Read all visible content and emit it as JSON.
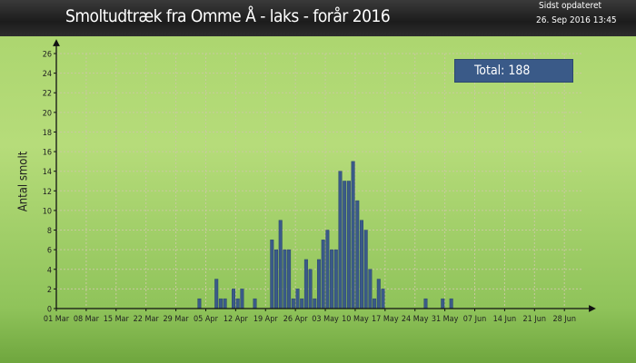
{
  "header": {
    "title": "Smoltudtræk fra Omme Å - laks - forår 2016",
    "updated_label": "Sidst opdateret",
    "updated_value": "26. Sep 2016  13:45"
  },
  "total_label": "Total: 188",
  "colors": {
    "bar": "#3a5a88",
    "grid": "#c9c9a0",
    "axis": "#111111"
  },
  "chart_data": {
    "type": "bar",
    "title": "Smoltudtræk fra Omme Å - laks - forår 2016",
    "xlabel": "",
    "ylabel": "Antal smolt",
    "ylim": [
      0,
      26
    ],
    "yticks": [
      0,
      2,
      4,
      6,
      8,
      10,
      12,
      14,
      16,
      18,
      20,
      22,
      24,
      26
    ],
    "xlim": [
      "2016-03-01",
      "2016-07-02"
    ],
    "xtick_labels": [
      "01 Mar",
      "08 Mar",
      "15 Mar",
      "22 Mar",
      "29 Mar",
      "05 Apr",
      "12 Apr",
      "19 Apr",
      "26 Apr",
      "03 May",
      "10 May",
      "17 May",
      "24 May",
      "31 May",
      "07 Jun",
      "14 Jun",
      "21 Jun",
      "28 Jun"
    ],
    "grid": true,
    "legend": "none",
    "series": [
      {
        "x": [
          "2016-04-03",
          "2016-04-07",
          "2016-04-08",
          "2016-04-09",
          "2016-04-11",
          "2016-04-12",
          "2016-04-13",
          "2016-04-16",
          "2016-04-20",
          "2016-04-21",
          "2016-04-22",
          "2016-04-23",
          "2016-04-24",
          "2016-04-25",
          "2016-04-26",
          "2016-04-27",
          "2016-04-28",
          "2016-04-29",
          "2016-04-30",
          "2016-05-01",
          "2016-05-02",
          "2016-05-03",
          "2016-05-04",
          "2016-05-05",
          "2016-05-06",
          "2016-05-07",
          "2016-05-08",
          "2016-05-09",
          "2016-05-10",
          "2016-05-11",
          "2016-05-12",
          "2016-05-13",
          "2016-05-14",
          "2016-05-15",
          "2016-05-16",
          "2016-05-18",
          "2016-05-26",
          "2016-05-30",
          "2016-06-01"
        ],
        "values": [
          1,
          3,
          1,
          1,
          2,
          1,
          2,
          1,
          7,
          6,
          9,
          6,
          6,
          1,
          2,
          1,
          5,
          4,
          1,
          5,
          7,
          8,
          6,
          6,
          14,
          13,
          13,
          15,
          11,
          9,
          8,
          4,
          1,
          3,
          2,
          0,
          1,
          1,
          1
        ]
      }
    ]
  }
}
